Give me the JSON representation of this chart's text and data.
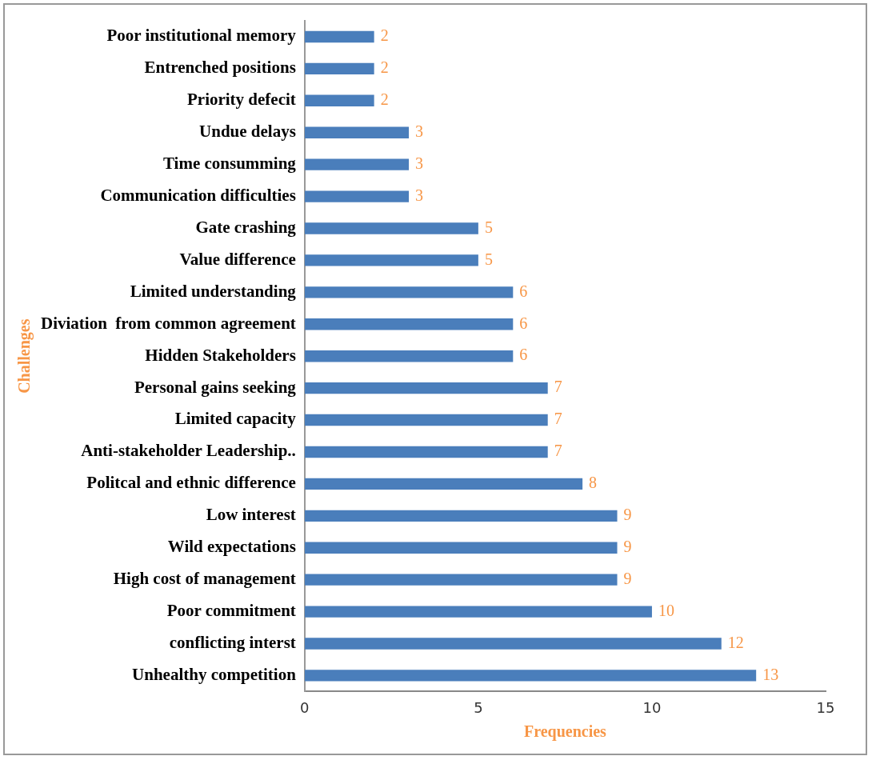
{
  "chart_data": {
    "type": "bar",
    "orientation": "horizontal",
    "xlabel": "Frequencies",
    "ylabel": "Challenges",
    "categories": [
      "Poor institutional memory",
      "Entrenched positions",
      "Priority defecit",
      "Undue delays",
      "Time consumming",
      "Communication difficulties",
      "Gate crashing",
      "Value difference",
      "Limited understanding",
      "Diviation  from common agreement",
      "Hidden Stakeholders",
      "Personal gains seeking",
      "Limited capacity",
      "Anti-stakeholder Leadership..",
      "Politcal and ethnic difference",
      "Low interest",
      "Wild expectations",
      "High cost of management",
      "Poor commitment",
      "conflicting interst",
      "Unhealthy competition"
    ],
    "values": [
      2,
      2,
      2,
      3,
      3,
      3,
      5,
      5,
      6,
      6,
      6,
      7,
      7,
      7,
      8,
      9,
      9,
      9,
      10,
      12,
      13
    ],
    "color": "#4a7ebb",
    "xlim": [
      0,
      15
    ],
    "xticks": [
      0,
      5,
      10,
      15
    ],
    "grid": false,
    "legend": false,
    "data_labels": true
  }
}
